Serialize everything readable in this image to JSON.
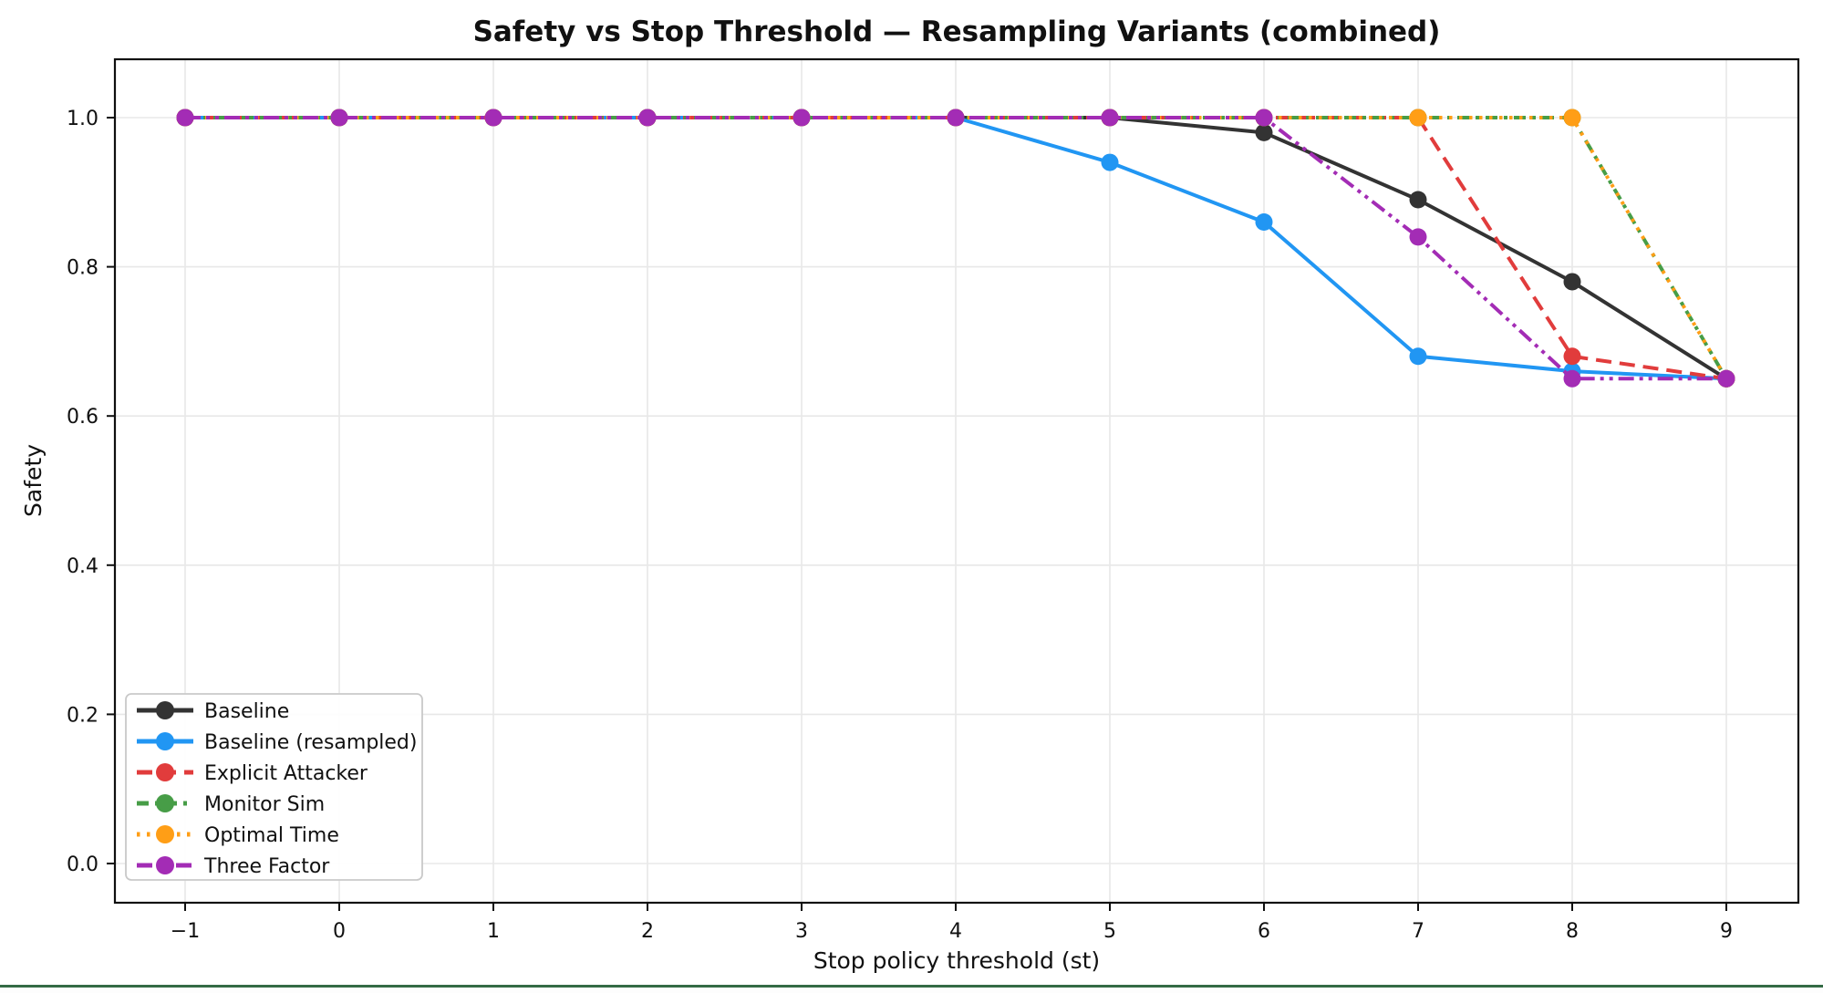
{
  "page": {
    "background": "#ffffff",
    "bottom_bar_color": "#346b45"
  },
  "chart_data": {
    "type": "line",
    "title": "Safety vs Stop Threshold — Resampling Variants (combined)",
    "xlabel": "Stop policy threshold (st)",
    "ylabel": "Safety",
    "x": [
      -1,
      0,
      1,
      2,
      3,
      4,
      5,
      6,
      7,
      8,
      9
    ],
    "x_tick_labels": [
      "−1",
      "0",
      "1",
      "2",
      "3",
      "4",
      "5",
      "6",
      "7",
      "8",
      "9"
    ],
    "y_ticks": [
      0.0,
      0.2,
      0.4,
      0.6,
      0.8,
      1.0
    ],
    "y_tick_labels": [
      "0.0",
      "0.2",
      "0.4",
      "0.6",
      "0.8",
      "1.0"
    ],
    "xlim": [
      -1.5,
      9.5
    ],
    "ylim": [
      0.0,
      1.0
    ],
    "grid": true,
    "grid_color": "#e8e8e8",
    "legend_position": "lower-left",
    "series": [
      {
        "name": "Baseline",
        "color": "#333333",
        "style": "solid",
        "values": [
          1.0,
          1.0,
          1.0,
          1.0,
          1.0,
          1.0,
          1.0,
          0.98,
          0.89,
          0.78,
          0.65
        ]
      },
      {
        "name": "Baseline (resampled)",
        "color": "#2196f3",
        "style": "solid",
        "values": [
          1.0,
          1.0,
          1.0,
          1.0,
          1.0,
          1.0,
          0.94,
          0.86,
          0.68,
          0.66,
          0.65
        ]
      },
      {
        "name": "Explicit Attacker",
        "color": "#e13c3c",
        "style": "dashed",
        "values": [
          1.0,
          1.0,
          1.0,
          1.0,
          1.0,
          1.0,
          1.0,
          1.0,
          1.0,
          0.68,
          0.65
        ]
      },
      {
        "name": "Monitor Sim",
        "color": "#479d47",
        "style": "dashdot",
        "values": [
          1.0,
          1.0,
          1.0,
          1.0,
          1.0,
          1.0,
          1.0,
          1.0,
          1.0,
          1.0,
          0.65
        ]
      },
      {
        "name": "Optimal Time",
        "color": "#ff9e16",
        "style": "dotted",
        "values": [
          1.0,
          1.0,
          1.0,
          1.0,
          1.0,
          1.0,
          1.0,
          1.0,
          1.0,
          1.0,
          0.65
        ]
      },
      {
        "name": "Three Factor",
        "color": "#a32cb5",
        "style": "dashdotdot",
        "values": [
          1.0,
          1.0,
          1.0,
          1.0,
          1.0,
          1.0,
          1.0,
          1.0,
          0.84,
          0.65,
          0.65
        ]
      }
    ]
  }
}
